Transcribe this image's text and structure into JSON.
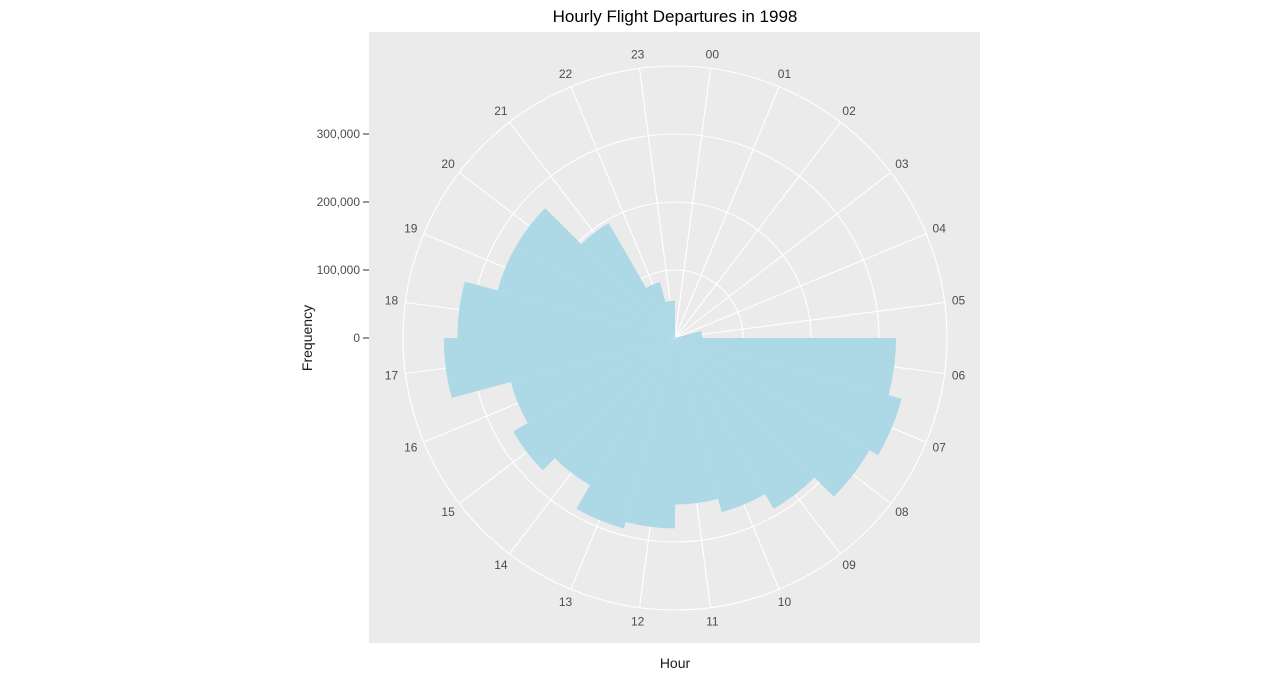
{
  "chart_data": {
    "type": "bar",
    "coord": "polar",
    "title": "Hourly Flight Departures in 1998",
    "xlabel": "Hour",
    "ylabel": "Frequency",
    "categories": [
      "00",
      "01",
      "02",
      "03",
      "04",
      "05",
      "06",
      "07",
      "08",
      "09",
      "10",
      "11",
      "12",
      "13",
      "14",
      "15",
      "16",
      "17",
      "18",
      "19",
      "20",
      "21",
      "22",
      "23"
    ],
    "values": [
      4000,
      2000,
      1000,
      1000,
      3000,
      40000,
      325000,
      345000,
      330000,
      290000,
      265000,
      245000,
      280000,
      290000,
      250000,
      275000,
      250000,
      340000,
      320000,
      270000,
      270000,
      195000,
      85000,
      55000
    ],
    "ylim": [
      0,
      400000
    ],
    "ticks": [
      0,
      100000,
      200000,
      300000
    ],
    "tick_labels": [
      "0",
      "100,000",
      "200,000",
      "300,000"
    ],
    "bar_color": "#add8e6",
    "panel_color": "#ebebeb",
    "grid_color": "#ffffff",
    "grid": true,
    "legend": "none"
  }
}
